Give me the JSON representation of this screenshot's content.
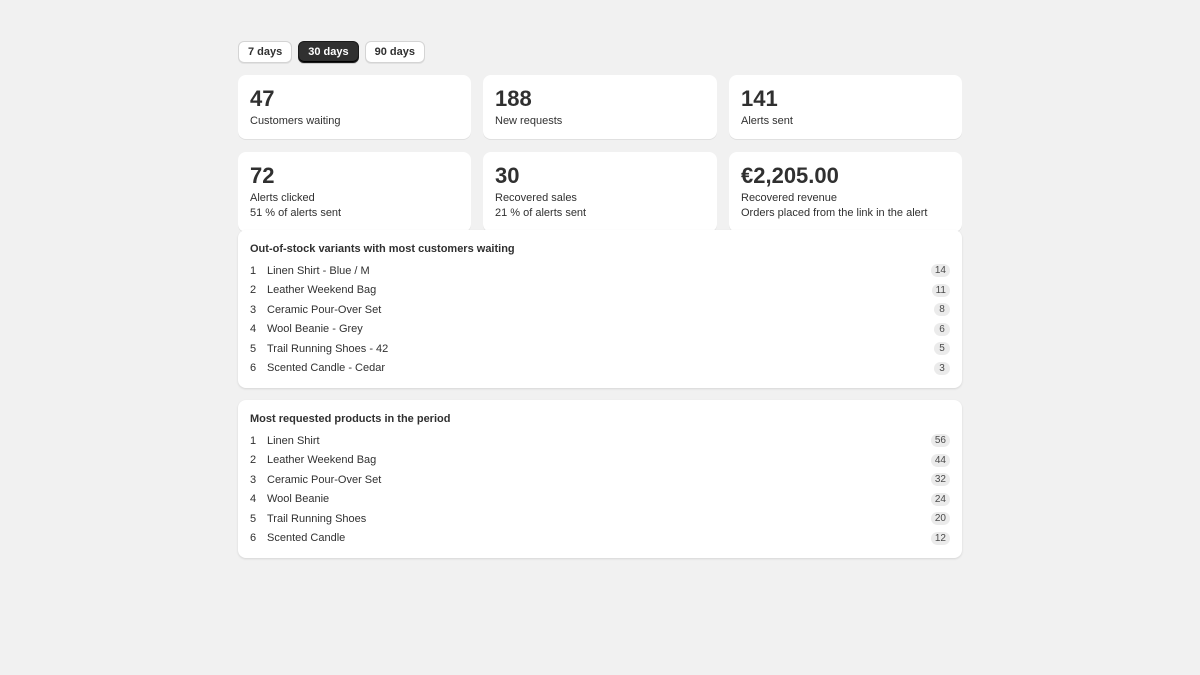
{
  "tabs": [
    {
      "label": "7 days",
      "active": false
    },
    {
      "label": "30 days",
      "active": true
    },
    {
      "label": "90 days",
      "active": false
    }
  ],
  "metrics_row1": [
    {
      "value": "47",
      "label": "Customers waiting"
    },
    {
      "value": "188",
      "label": "New requests"
    },
    {
      "value": "141",
      "label": "Alerts sent"
    }
  ],
  "metrics_row2": [
    {
      "value": "72",
      "label": "Alerts clicked",
      "sub": "51 % of alerts sent"
    },
    {
      "value": "30",
      "label": "Recovered sales",
      "sub": "21 % of alerts sent"
    },
    {
      "value": "€2,205.00",
      "label": "Recovered revenue",
      "sub": "Orders placed from the link in the alert"
    }
  ],
  "waiting_panel": {
    "title": "Out-of-stock variants with most customers waiting",
    "items": [
      {
        "rank": "1",
        "name": "Linen Shirt - Blue / M",
        "count": "14"
      },
      {
        "rank": "2",
        "name": "Leather Weekend Bag",
        "count": "11"
      },
      {
        "rank": "3",
        "name": "Ceramic Pour-Over Set",
        "count": "8"
      },
      {
        "rank": "4",
        "name": "Wool Beanie - Grey",
        "count": "6"
      },
      {
        "rank": "5",
        "name": "Trail Running Shoes - 42",
        "count": "5"
      },
      {
        "rank": "6",
        "name": "Scented Candle - Cedar",
        "count": "3"
      }
    ]
  },
  "requested_panel": {
    "title": "Most requested products in the period",
    "items": [
      {
        "rank": "1",
        "name": "Linen Shirt",
        "count": "56"
      },
      {
        "rank": "2",
        "name": "Leather Weekend Bag",
        "count": "44"
      },
      {
        "rank": "3",
        "name": "Ceramic Pour-Over Set",
        "count": "32"
      },
      {
        "rank": "4",
        "name": "Wool Beanie",
        "count": "24"
      },
      {
        "rank": "5",
        "name": "Trail Running Shoes",
        "count": "20"
      },
      {
        "rank": "6",
        "name": "Scented Candle",
        "count": "12"
      }
    ]
  },
  "colors": {
    "background": "#f1f1f1",
    "active_tab": "#303030",
    "text": "#303030",
    "badge": "#ebebeb"
  }
}
